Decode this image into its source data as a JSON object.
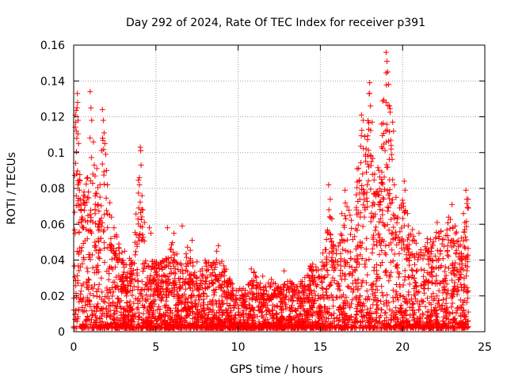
{
  "chart_data": {
    "type": "scatter",
    "title": "Day 292 of 2024, Rate Of TEC Index for receiver p391",
    "xlabel": "GPS time / hours",
    "ylabel": "ROTI / TECUs",
    "xlim": [
      0,
      25
    ],
    "ylim": [
      0,
      0.16
    ],
    "x_ticks": [
      {
        "value": 0,
        "label": "0"
      },
      {
        "value": 5,
        "label": "5"
      },
      {
        "value": 10,
        "label": "10"
      },
      {
        "value": 15,
        "label": "15"
      },
      {
        "value": 20,
        "label": "20"
      },
      {
        "value": 25,
        "label": "25"
      }
    ],
    "y_ticks": [
      {
        "value": 0,
        "label": "0"
      },
      {
        "value": 0.02,
        "label": "0.02"
      },
      {
        "value": 0.04,
        "label": "0.04"
      },
      {
        "value": 0.06,
        "label": "0.06"
      },
      {
        "value": 0.08,
        "label": "0.08"
      },
      {
        "value": 0.1,
        "label": "0.1"
      },
      {
        "value": 0.12,
        "label": "0.12"
      },
      {
        "value": 0.14,
        "label": "0.14"
      },
      {
        "value": 0.16,
        "label": "0.16"
      }
    ],
    "grid": true,
    "marker": "plus",
    "color": "#ff0000",
    "envelope": {
      "x": [
        0,
        0.1,
        0.2,
        0.3,
        0.5,
        0.8,
        1.0,
        1.3,
        1.6,
        1.8,
        2.0,
        2.4,
        2.8,
        3.2,
        3.6,
        4.0,
        4.2,
        4.5,
        5.0,
        5.5,
        6.0,
        6.5,
        7.0,
        7.5,
        8.0,
        8.5,
        8.8,
        9.5,
        10.0,
        10.5,
        11.0,
        11.5,
        12.0,
        12.5,
        13.0,
        13.5,
        14.0,
        14.5,
        15.0,
        15.5,
        16.0,
        16.5,
        17.0,
        17.3,
        17.6,
        17.8,
        18.0,
        18.3,
        18.6,
        18.9,
        19.1,
        19.3,
        19.6,
        20.0,
        20.3,
        20.6,
        21.0,
        21.5,
        22.0,
        22.5,
        23.0,
        23.5,
        23.8,
        24.0
      ],
      "y": [
        0.05,
        0.12,
        0.13,
        0.1,
        0.07,
        0.09,
        0.12,
        0.1,
        0.08,
        0.12,
        0.07,
        0.06,
        0.05,
        0.04,
        0.04,
        0.1,
        0.06,
        0.04,
        0.04,
        0.04,
        0.05,
        0.04,
        0.05,
        0.03,
        0.04,
        0.04,
        0.045,
        0.03,
        0.025,
        0.025,
        0.035,
        0.025,
        0.03,
        0.025,
        0.03,
        0.025,
        0.03,
        0.04,
        0.035,
        0.07,
        0.045,
        0.075,
        0.06,
        0.1,
        0.12,
        0.1,
        0.14,
        0.08,
        0.1,
        0.15,
        0.155,
        0.11,
        0.06,
        0.08,
        0.07,
        0.055,
        0.05,
        0.05,
        0.055,
        0.06,
        0.065,
        0.05,
        0.07,
        0.075
      ]
    },
    "series": [
      {
        "points": [
          [
            0.1,
            0.121
          ],
          [
            0.13,
            0.117
          ],
          [
            0.16,
            0.112
          ],
          [
            0.19,
            0.108
          ],
          [
            0.22,
            0.133
          ],
          [
            0.24,
            0.128
          ],
          [
            0.27,
            0.118
          ],
          [
            0.3,
            0.105
          ],
          [
            0.12,
            0.094
          ],
          [
            0.18,
            0.088
          ],
          [
            0.26,
            0.082
          ],
          [
            0.35,
            0.079
          ],
          [
            0.4,
            0.074
          ],
          [
            0.45,
            0.068
          ],
          [
            0.5,
            0.064
          ],
          [
            0.6,
            0.058
          ],
          [
            0.7,
            0.062
          ],
          [
            0.85,
            0.086
          ],
          [
            0.9,
            0.078
          ],
          [
            1.0,
            0.134
          ],
          [
            1.05,
            0.125
          ],
          [
            1.1,
            0.118
          ],
          [
            1.2,
            0.106
          ],
          [
            1.25,
            0.093
          ],
          [
            1.3,
            0.087
          ],
          [
            1.4,
            0.077
          ],
          [
            1.5,
            0.071
          ],
          [
            1.6,
            0.082
          ],
          [
            1.75,
            0.124
          ],
          [
            1.8,
            0.118
          ],
          [
            1.85,
            0.111
          ],
          [
            1.9,
            0.105
          ],
          [
            1.95,
            0.099
          ],
          [
            2.0,
            0.09
          ],
          [
            2.05,
            0.082
          ],
          [
            2.2,
            0.072
          ],
          [
            2.3,
            0.064
          ],
          [
            2.45,
            0.058
          ],
          [
            2.6,
            0.054
          ],
          [
            2.75,
            0.049
          ],
          [
            3.1,
            0.045
          ],
          [
            3.4,
            0.041
          ],
          [
            4.05,
            0.103
          ],
          [
            4.08,
            0.101
          ],
          [
            4.1,
            0.093
          ],
          [
            4.0,
            0.082
          ],
          [
            4.15,
            0.076
          ],
          [
            4.2,
            0.068
          ],
          [
            4.3,
            0.061
          ],
          [
            4.6,
            0.058
          ],
          [
            4.7,
            0.055
          ],
          [
            5.7,
            0.058
          ],
          [
            6.1,
            0.055
          ],
          [
            6.6,
            0.059
          ],
          [
            7.2,
            0.051
          ],
          [
            7.5,
            0.039
          ],
          [
            8.8,
            0.048
          ],
          [
            8.7,
            0.045
          ],
          [
            10.8,
            0.035
          ],
          [
            11.5,
            0.031
          ],
          [
            12.8,
            0.034
          ],
          [
            13.0,
            0.028
          ],
          [
            13.6,
            0.025
          ],
          [
            14.5,
            0.031
          ],
          [
            15.5,
            0.082
          ],
          [
            15.6,
            0.074
          ],
          [
            15.7,
            0.063
          ],
          [
            16.3,
            0.066
          ],
          [
            16.5,
            0.079
          ],
          [
            16.8,
            0.065
          ],
          [
            17.2,
            0.068
          ],
          [
            17.4,
            0.074
          ],
          [
            17.5,
            0.121
          ],
          [
            17.6,
            0.118
          ],
          [
            17.7,
            0.109
          ],
          [
            17.75,
            0.098
          ],
          [
            17.8,
            0.089
          ],
          [
            17.85,
            0.082
          ],
          [
            18.0,
            0.139
          ],
          [
            18.05,
            0.126
          ],
          [
            18.15,
            0.117
          ],
          [
            18.1,
            0.095
          ],
          [
            18.3,
            0.088
          ],
          [
            18.4,
            0.078
          ],
          [
            18.7,
            0.083
          ],
          [
            18.85,
            0.074
          ],
          [
            19.0,
            0.156
          ],
          [
            19.05,
            0.151
          ],
          [
            19.1,
            0.145
          ],
          [
            19.15,
            0.138
          ],
          [
            19.0,
            0.128
          ],
          [
            19.2,
            0.126
          ],
          [
            19.3,
            0.104
          ],
          [
            19.4,
            0.117
          ],
          [
            19.45,
            0.112
          ],
          [
            19.5,
            0.082
          ],
          [
            19.6,
            0.075
          ],
          [
            19.7,
            0.064
          ],
          [
            20.1,
            0.084
          ],
          [
            20.15,
            0.079
          ],
          [
            20.3,
            0.066
          ],
          [
            20.6,
            0.057
          ],
          [
            21.0,
            0.055
          ],
          [
            21.5,
            0.052
          ],
          [
            22.1,
            0.061
          ],
          [
            22.2,
            0.055
          ],
          [
            22.8,
            0.064
          ],
          [
            23.0,
            0.071
          ],
          [
            23.2,
            0.059
          ],
          [
            23.7,
            0.066
          ],
          [
            23.85,
            0.079
          ],
          [
            23.9,
            0.074
          ],
          [
            24.0,
            0.069
          ]
        ]
      }
    ]
  }
}
